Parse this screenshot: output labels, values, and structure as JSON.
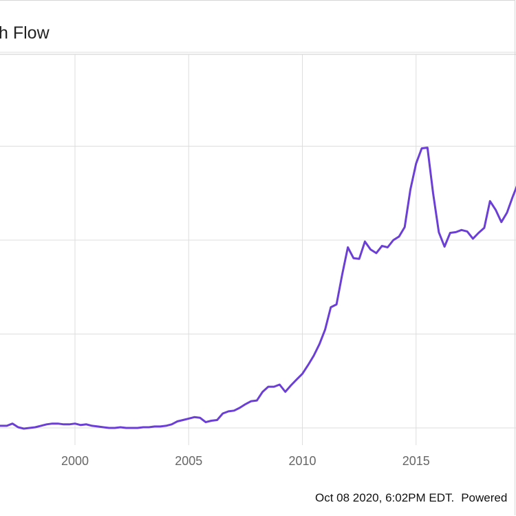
{
  "colors": {
    "line": "#6b3fd6",
    "grid": "#dddddd",
    "axis": "#cccccc",
    "tick_text": "#666666"
  },
  "chart_data": {
    "type": "line",
    "title": "h Flow",
    "x_ticks": [
      "2000",
      "2005",
      "2010",
      "2015"
    ],
    "xlim": [
      1996.7,
      2019.5
    ],
    "ylim": [
      -0.3,
      5.4
    ],
    "grid": true,
    "series": [
      {
        "x": [
          1996.7,
          1997.0,
          1997.25,
          1997.5,
          1997.75,
          1998.0,
          1998.25,
          1998.5,
          1998.75,
          1999.0,
          1999.25,
          1999.5,
          1999.75,
          2000.0,
          2000.25,
          2000.5,
          2000.75,
          2001.0,
          2001.25,
          2001.5,
          2001.75,
          2002.0,
          2002.25,
          2002.5,
          2002.75,
          2003.0,
          2003.25,
          2003.5,
          2003.75,
          2004.0,
          2004.25,
          2004.5,
          2004.75,
          2005.0,
          2005.25,
          2005.5,
          2005.75,
          2006.0,
          2006.25,
          2006.5,
          2006.75,
          2007.0,
          2007.25,
          2007.5,
          2007.75,
          2008.0,
          2008.25,
          2008.5,
          2008.75,
          2009.0,
          2009.25,
          2009.5,
          2009.75,
          2010.0,
          2010.25,
          2010.5,
          2010.75,
          2011.0,
          2011.25,
          2011.5,
          2011.75,
          2012.0,
          2012.25,
          2012.5,
          2012.75,
          2013.0,
          2013.25,
          2013.5,
          2013.75,
          2014.0,
          2014.25,
          2014.5,
          2014.75,
          2015.0,
          2015.25,
          2015.5,
          2015.75,
          2016.0,
          2016.25,
          2016.5,
          2016.75,
          2017.0,
          2017.25,
          2017.5,
          2017.75,
          2018.0,
          2018.25,
          2018.5,
          2018.75,
          2019.0,
          2019.25,
          2019.5
        ],
        "values": [
          0.03,
          0.03,
          0.06,
          0.01,
          -0.01,
          0.0,
          0.01,
          0.03,
          0.05,
          0.06,
          0.06,
          0.05,
          0.05,
          0.06,
          0.04,
          0.05,
          0.03,
          0.02,
          0.01,
          0.0,
          0.0,
          0.01,
          0.0,
          0.0,
          0.0,
          0.01,
          0.01,
          0.02,
          0.02,
          0.03,
          0.05,
          0.09,
          0.11,
          0.13,
          0.15,
          0.14,
          0.08,
          0.1,
          0.11,
          0.2,
          0.23,
          0.24,
          0.28,
          0.33,
          0.37,
          0.38,
          0.5,
          0.57,
          0.57,
          0.6,
          0.5,
          0.59,
          0.67,
          0.75,
          0.87,
          1.0,
          1.16,
          1.36,
          1.67,
          1.71,
          2.12,
          2.5,
          2.35,
          2.34,
          2.58,
          2.47,
          2.42,
          2.52,
          2.5,
          2.6,
          2.65,
          2.78,
          3.3,
          3.66,
          3.87,
          3.88,
          3.25,
          2.71,
          2.51,
          2.7,
          2.71,
          2.74,
          2.72,
          2.62,
          2.7,
          2.77,
          3.14,
          3.02,
          2.85,
          2.98,
          3.2,
          3.4
        ]
      }
    ]
  },
  "footer": {
    "timestamp": "Oct 08 2020, 6:02PM EDT.",
    "powered": "Powered"
  }
}
